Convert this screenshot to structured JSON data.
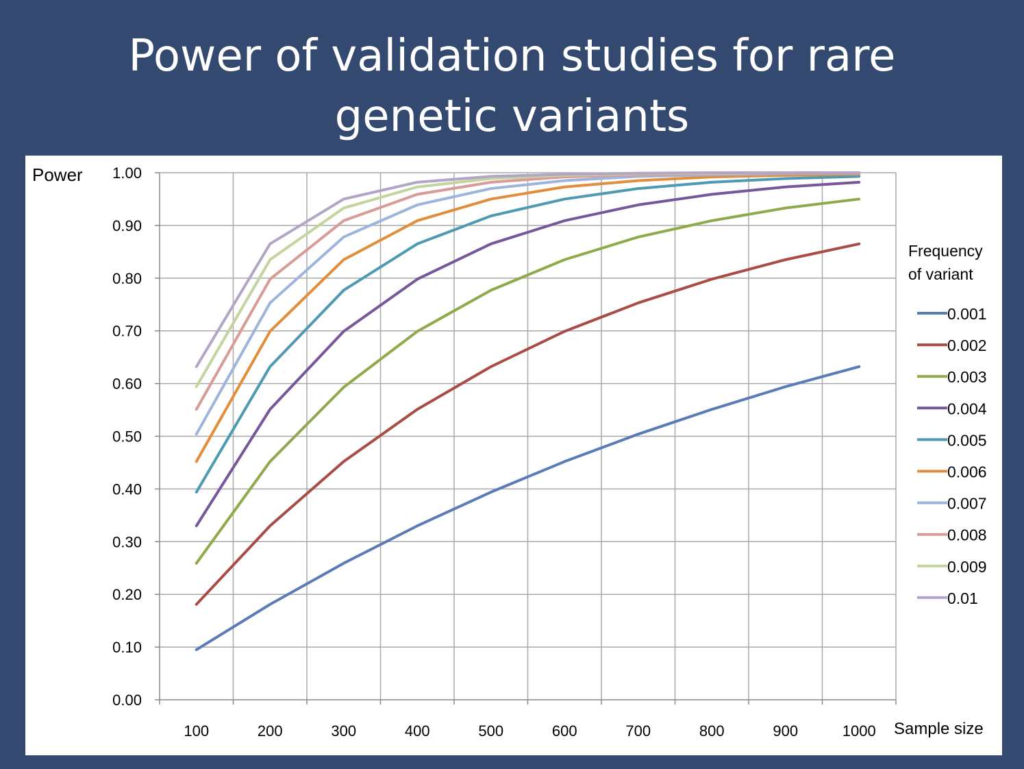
{
  "slide": {
    "title_line1": "Power of validation studies for rare",
    "title_line2": "genetic variants"
  },
  "chart_data": {
    "type": "line",
    "title": "Power of validation studies for rare genetic variants",
    "ylabel": "Power",
    "xlabel": "Sample size",
    "ylim": [
      0,
      1
    ],
    "grid": true,
    "legend_title": [
      "Frequency",
      "of variant"
    ],
    "legend_position": "right",
    "x": [
      100,
      200,
      300,
      400,
      500,
      600,
      700,
      800,
      900,
      1000
    ],
    "x_tick_labels": [
      "100",
      "200",
      "300",
      "400",
      "500",
      "600",
      "700",
      "800",
      "900",
      "1000"
    ],
    "y_tick_labels": [
      "0.00",
      "0.10",
      "0.20",
      "0.30",
      "0.40",
      "0.50",
      "0.60",
      "0.70",
      "0.80",
      "0.90",
      "1.00"
    ],
    "series": [
      {
        "name": "0.001",
        "color": "#5b7bb6",
        "values": [
          0.095,
          0.181,
          0.259,
          0.33,
          0.394,
          0.452,
          0.504,
          0.551,
          0.594,
          0.632
        ]
      },
      {
        "name": "0.002",
        "color": "#a84c45",
        "values": [
          0.181,
          0.33,
          0.452,
          0.551,
          0.632,
          0.699,
          0.753,
          0.798,
          0.835,
          0.865
        ]
      },
      {
        "name": "0.003",
        "color": "#8faa4b",
        "values": [
          0.259,
          0.452,
          0.593,
          0.699,
          0.777,
          0.835,
          0.878,
          0.909,
          0.933,
          0.95
        ]
      },
      {
        "name": "0.004",
        "color": "#76579a",
        "values": [
          0.33,
          0.551,
          0.699,
          0.798,
          0.865,
          0.909,
          0.939,
          0.959,
          0.973,
          0.982
        ]
      },
      {
        "name": "0.005",
        "color": "#4d9ab2",
        "values": [
          0.394,
          0.632,
          0.777,
          0.865,
          0.918,
          0.95,
          0.97,
          0.982,
          0.989,
          0.993
        ]
      },
      {
        "name": "0.006",
        "color": "#e08e3c",
        "values": [
          0.452,
          0.699,
          0.835,
          0.909,
          0.95,
          0.973,
          0.985,
          0.992,
          0.995,
          0.997
        ]
      },
      {
        "name": "0.007",
        "color": "#9db4dc",
        "values": [
          0.504,
          0.753,
          0.878,
          0.939,
          0.97,
          0.985,
          0.993,
          0.996,
          0.998,
          0.999
        ]
      },
      {
        "name": "0.008",
        "color": "#d79c97",
        "values": [
          0.551,
          0.798,
          0.909,
          0.959,
          0.982,
          0.992,
          0.996,
          0.998,
          0.999,
          1.0
        ]
      },
      {
        "name": "0.009",
        "color": "#c3d49e",
        "values": [
          0.594,
          0.835,
          0.933,
          0.973,
          0.989,
          0.995,
          0.998,
          0.999,
          1.0,
          1.0
        ]
      },
      {
        "name": "0.01",
        "color": "#b2a5c6",
        "values": [
          0.632,
          0.865,
          0.95,
          0.982,
          0.993,
          0.997,
          0.999,
          1.0,
          1.0,
          1.0
        ]
      }
    ]
  }
}
